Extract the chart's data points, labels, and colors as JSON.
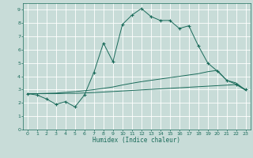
{
  "xlabel": "Humidex (Indice chaleur)",
  "bg_color": "#c8dcd8",
  "grid_color": "#ffffff",
  "line_color": "#1a6b5a",
  "xlim": [
    -0.5,
    23.5
  ],
  "ylim": [
    0,
    9.5
  ],
  "xticks": [
    0,
    1,
    2,
    3,
    4,
    5,
    6,
    7,
    8,
    9,
    10,
    11,
    12,
    13,
    14,
    15,
    16,
    17,
    18,
    19,
    20,
    21,
    22,
    23
  ],
  "yticks": [
    0,
    1,
    2,
    3,
    4,
    5,
    6,
    7,
    8,
    9
  ],
  "line1_x": [
    0,
    1,
    2,
    3,
    4,
    5,
    6,
    7,
    8,
    9,
    10,
    11,
    12,
    13,
    14,
    15,
    16,
    17,
    18,
    19,
    20,
    21,
    22,
    23
  ],
  "line1_y": [
    2.7,
    2.6,
    2.3,
    1.9,
    2.1,
    1.7,
    2.6,
    4.3,
    6.5,
    5.1,
    7.9,
    8.6,
    9.1,
    8.5,
    8.2,
    8.2,
    7.6,
    7.8,
    6.3,
    5.0,
    4.4,
    3.7,
    3.4,
    3.0
  ],
  "line2_x": [
    0,
    1,
    2,
    3,
    4,
    5,
    6,
    7,
    8,
    9,
    10,
    11,
    12,
    13,
    14,
    15,
    16,
    17,
    18,
    19,
    20,
    21,
    22,
    23
  ],
  "line2_y": [
    2.7,
    2.7,
    2.72,
    2.74,
    2.8,
    2.85,
    2.92,
    3.0,
    3.1,
    3.2,
    3.35,
    3.48,
    3.6,
    3.7,
    3.8,
    3.9,
    4.0,
    4.1,
    4.2,
    4.35,
    4.45,
    3.7,
    3.5,
    2.95
  ],
  "line3_x": [
    0,
    1,
    2,
    3,
    4,
    5,
    6,
    7,
    8,
    9,
    10,
    11,
    12,
    13,
    14,
    15,
    16,
    17,
    18,
    19,
    20,
    21,
    22,
    23
  ],
  "line3_y": [
    2.7,
    2.7,
    2.7,
    2.7,
    2.72,
    2.72,
    2.75,
    2.78,
    2.82,
    2.86,
    2.9,
    2.94,
    2.98,
    3.02,
    3.06,
    3.1,
    3.14,
    3.18,
    3.22,
    3.26,
    3.3,
    3.34,
    3.38,
    2.95
  ]
}
